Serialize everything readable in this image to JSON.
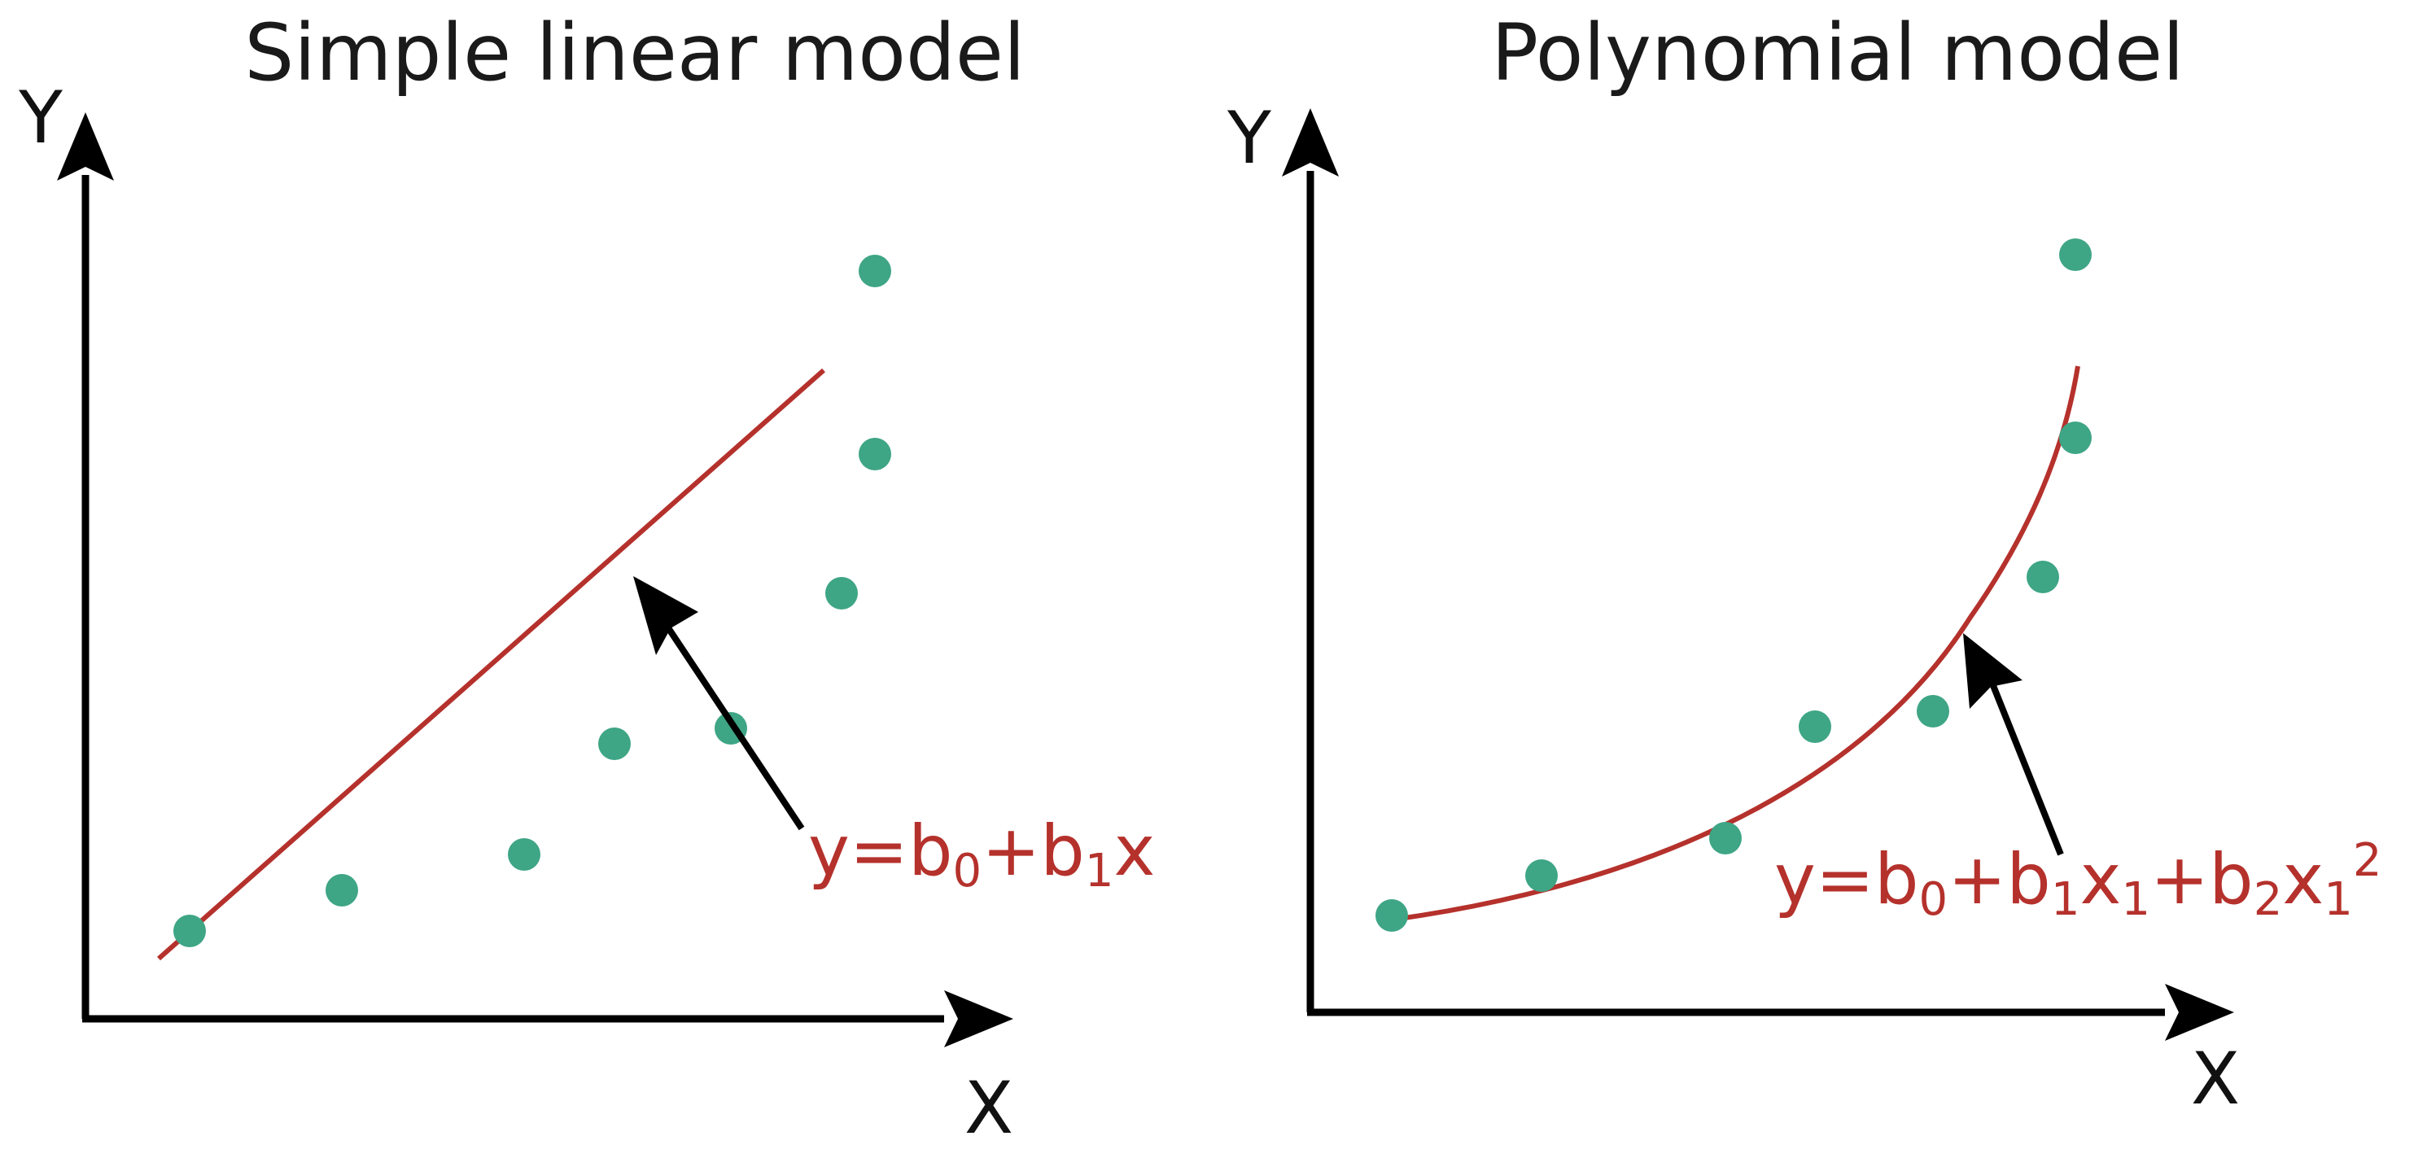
{
  "colors": {
    "axis": "#000000",
    "fit_line": "#b5312c",
    "points": "#3ea585",
    "equation": "#b5312c",
    "arrow": "#000000"
  },
  "panels": [
    {
      "title": "Simple linear model",
      "y_axis_label": "Y",
      "x_axis_label": "X",
      "equation": {
        "parts": [
          {
            "text": "y=b",
            "sub": false
          },
          {
            "text": "0",
            "sub": true
          },
          {
            "text": "+b",
            "sub": false
          },
          {
            "text": "1",
            "sub": true
          },
          {
            "text": "x",
            "sub": false
          }
        ]
      }
    },
    {
      "title": "Polynomial model",
      "y_axis_label": "Y",
      "x_axis_label": "X",
      "equation": {
        "parts": [
          {
            "text": "y=b",
            "sub": false
          },
          {
            "text": "0",
            "sub": true
          },
          {
            "text": "+b",
            "sub": false
          },
          {
            "text": "1",
            "sub": true
          },
          {
            "text": "x",
            "sub": false
          },
          {
            "text": "1",
            "sub": true
          },
          {
            "text": "+b",
            "sub": false
          },
          {
            "text": "2",
            "sub": true
          },
          {
            "text": "x",
            "sub": false
          },
          {
            "text": "1",
            "sub": true
          },
          {
            "text": "2",
            "sup": true
          }
        ]
      }
    }
  ]
}
